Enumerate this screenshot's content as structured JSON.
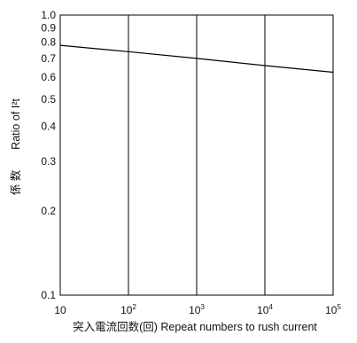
{
  "chart_data": {
    "type": "line",
    "title": "",
    "xlabel": "突入電流回数(回) Repeat numbers to rush current",
    "ylabel": "係 数 Ratio of I²t",
    "ylabel_jp": "係 数",
    "ylabel_en": "Ratio of I²t",
    "x_scale": "log",
    "y_scale": "log",
    "xlim": [
      10,
      100000
    ],
    "ylim": [
      0.1,
      1.0
    ],
    "grid": "vertical lines at each decade",
    "x_ticks": [
      {
        "value": 10,
        "base": "10",
        "exp": ""
      },
      {
        "value": 100,
        "base": "10",
        "exp": "2"
      },
      {
        "value": 1000,
        "base": "10",
        "exp": "3"
      },
      {
        "value": 10000,
        "base": "10",
        "exp": "4"
      },
      {
        "value": 100000,
        "base": "10",
        "exp": "5"
      }
    ],
    "y_ticks": [
      {
        "value": 1.0,
        "label": "1.0"
      },
      {
        "value": 0.9,
        "label": "0.9"
      },
      {
        "value": 0.8,
        "label": "0.8"
      },
      {
        "value": 0.7,
        "label": "0.7"
      },
      {
        "value": 0.6,
        "label": "0.6"
      },
      {
        "value": 0.5,
        "label": "0.5"
      },
      {
        "value": 0.4,
        "label": "0.4"
      },
      {
        "value": 0.3,
        "label": "0.3"
      },
      {
        "value": 0.2,
        "label": "0.2"
      },
      {
        "value": 0.1,
        "label": "0.1"
      }
    ],
    "series": [
      {
        "x": [
          10,
          100,
          1000,
          10000,
          100000
        ],
        "y": [
          0.78,
          0.74,
          0.7,
          0.66,
          0.625
        ]
      }
    ]
  }
}
